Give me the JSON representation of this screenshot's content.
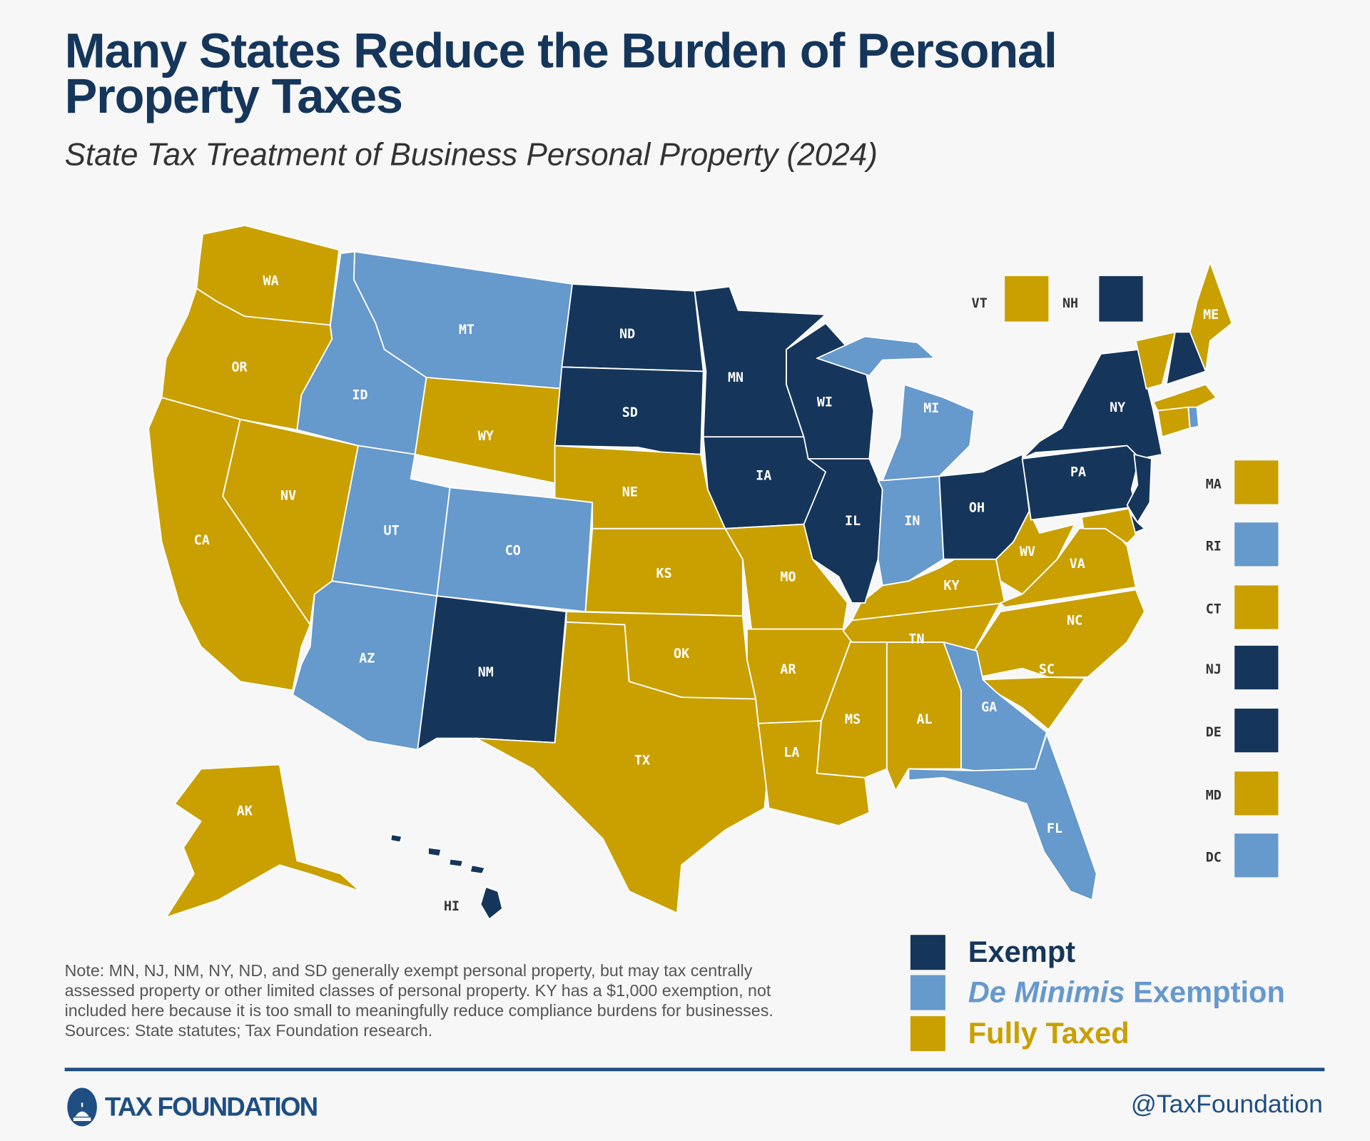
{
  "header": {
    "title": "Many States Reduce the Burden of Personal Property Taxes",
    "subtitle": "State Tax Treatment of Business Personal Property (2024)"
  },
  "colors": {
    "exempt": "#15365a",
    "de_minimis": "#6699cc",
    "fully_taxed": "#c9a000",
    "background": "#f7f7f7",
    "border": "#ffffff"
  },
  "legend": {
    "exempt": "Exempt",
    "de_minimis_italic": "De Minimis",
    "de_minimis_rest": " Exemption",
    "fully_taxed": "Fully Taxed"
  },
  "states": [
    {
      "abbr": "WA",
      "cat": "fully_taxed"
    },
    {
      "abbr": "OR",
      "cat": "fully_taxed"
    },
    {
      "abbr": "CA",
      "cat": "fully_taxed"
    },
    {
      "abbr": "NV",
      "cat": "fully_taxed"
    },
    {
      "abbr": "ID",
      "cat": "de_minimis"
    },
    {
      "abbr": "MT",
      "cat": "de_minimis"
    },
    {
      "abbr": "WY",
      "cat": "fully_taxed"
    },
    {
      "abbr": "UT",
      "cat": "de_minimis"
    },
    {
      "abbr": "CO",
      "cat": "de_minimis"
    },
    {
      "abbr": "AZ",
      "cat": "de_minimis"
    },
    {
      "abbr": "NM",
      "cat": "exempt"
    },
    {
      "abbr": "ND",
      "cat": "exempt"
    },
    {
      "abbr": "SD",
      "cat": "exempt"
    },
    {
      "abbr": "NE",
      "cat": "fully_taxed"
    },
    {
      "abbr": "KS",
      "cat": "fully_taxed"
    },
    {
      "abbr": "OK",
      "cat": "fully_taxed"
    },
    {
      "abbr": "TX",
      "cat": "fully_taxed"
    },
    {
      "abbr": "MN",
      "cat": "exempt"
    },
    {
      "abbr": "IA",
      "cat": "exempt"
    },
    {
      "abbr": "MO",
      "cat": "fully_taxed"
    },
    {
      "abbr": "AR",
      "cat": "fully_taxed"
    },
    {
      "abbr": "LA",
      "cat": "fully_taxed"
    },
    {
      "abbr": "MS",
      "cat": "fully_taxed"
    },
    {
      "abbr": "AL",
      "cat": "fully_taxed"
    },
    {
      "abbr": "TN",
      "cat": "fully_taxed"
    },
    {
      "abbr": "KY",
      "cat": "fully_taxed"
    },
    {
      "abbr": "WI",
      "cat": "exempt"
    },
    {
      "abbr": "IL",
      "cat": "exempt"
    },
    {
      "abbr": "IN",
      "cat": "de_minimis"
    },
    {
      "abbr": "MI",
      "cat": "de_minimis"
    },
    {
      "abbr": "OH",
      "cat": "exempt"
    },
    {
      "abbr": "WV",
      "cat": "fully_taxed"
    },
    {
      "abbr": "VA",
      "cat": "fully_taxed"
    },
    {
      "abbr": "NC",
      "cat": "fully_taxed"
    },
    {
      "abbr": "SC",
      "cat": "fully_taxed"
    },
    {
      "abbr": "GA",
      "cat": "de_minimis"
    },
    {
      "abbr": "FL",
      "cat": "de_minimis"
    },
    {
      "abbr": "PA",
      "cat": "exempt"
    },
    {
      "abbr": "NY",
      "cat": "exempt"
    },
    {
      "abbr": "NJ",
      "cat": "exempt"
    },
    {
      "abbr": "DE",
      "cat": "exempt"
    },
    {
      "abbr": "MD",
      "cat": "fully_taxed"
    },
    {
      "abbr": "VT",
      "cat": "fully_taxed"
    },
    {
      "abbr": "NH",
      "cat": "exempt"
    },
    {
      "abbr": "ME",
      "cat": "fully_taxed"
    },
    {
      "abbr": "MA",
      "cat": "fully_taxed"
    },
    {
      "abbr": "CT",
      "cat": "fully_taxed"
    },
    {
      "abbr": "RI",
      "cat": "de_minimis"
    },
    {
      "abbr": "AK",
      "cat": "fully_taxed"
    },
    {
      "abbr": "HI",
      "cat": "exempt"
    },
    {
      "abbr": "DC",
      "cat": "de_minimis"
    }
  ],
  "small_states_top": [
    {
      "abbr": "VT",
      "cat": "fully_taxed"
    },
    {
      "abbr": "NH",
      "cat": "exempt"
    }
  ],
  "small_states_side": [
    {
      "abbr": "MA",
      "cat": "fully_taxed"
    },
    {
      "abbr": "RI",
      "cat": "de_minimis"
    },
    {
      "abbr": "CT",
      "cat": "fully_taxed"
    },
    {
      "abbr": "NJ",
      "cat": "exempt"
    },
    {
      "abbr": "DE",
      "cat": "exempt"
    },
    {
      "abbr": "MD",
      "cat": "fully_taxed"
    },
    {
      "abbr": "DC",
      "cat": "de_minimis"
    }
  ],
  "note": {
    "text": "Note: MN, NJ, NM, NY, ND, and SD generally exempt personal property, but may tax centrally assessed property or other limited classes of personal property. KY has a $1,000 exemption, not included here because it is too small to meaningfully reduce compliance burdens for businesses.",
    "sources": "Sources: State statutes; Tax Foundation research."
  },
  "footer": {
    "logo_text": "TAX FOUNDATION",
    "handle": "@TaxFoundation"
  }
}
